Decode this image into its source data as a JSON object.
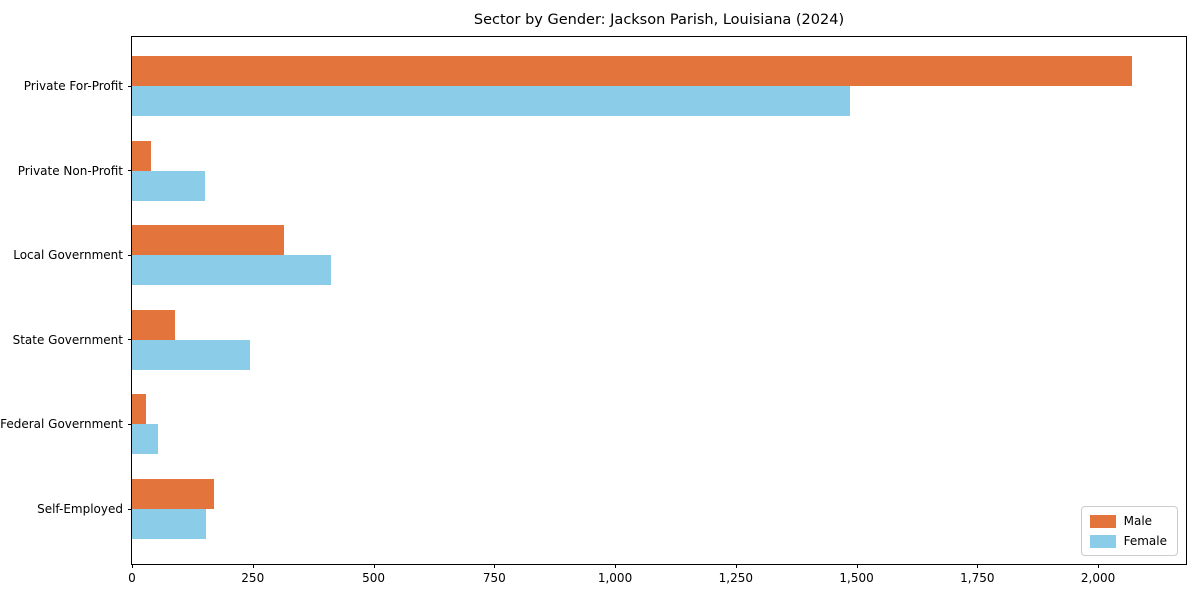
{
  "title": "Sector by Gender: Jackson Parish, Louisiana (2024)",
  "colors": {
    "male": "#E2743C",
    "female": "#8BCDE8",
    "axis": "#000000",
    "legend_border": "#cccccc",
    "background": "#ffffff"
  },
  "chart_data": {
    "type": "bar",
    "orientation": "horizontal",
    "title": "Sector by Gender: Jackson Parish, Louisiana (2024)",
    "categories": [
      "Private For-Profit",
      "Private Non-Profit",
      "Local Government",
      "State Government",
      "Federal Government",
      "Self-Employed"
    ],
    "series": [
      {
        "name": "Male",
        "color": "#E2743C",
        "values": [
          2070,
          40,
          315,
          88,
          30,
          170
        ]
      },
      {
        "name": "Female",
        "color": "#8BCDE8",
        "values": [
          1487,
          151,
          413,
          245,
          54,
          153
        ]
      }
    ],
    "xlabel": "",
    "ylabel": "",
    "xlim": [
      0,
      2182
    ],
    "xticks": [
      0,
      250,
      500,
      750,
      1000,
      1250,
      1500,
      1750,
      2000
    ],
    "xtick_labels": [
      "0",
      "250",
      "500",
      "750",
      "1,000",
      "1,250",
      "1,500",
      "1,750",
      "2,000"
    ],
    "grid": false,
    "legend": {
      "position": "lower right",
      "entries": [
        "Male",
        "Female"
      ]
    }
  }
}
